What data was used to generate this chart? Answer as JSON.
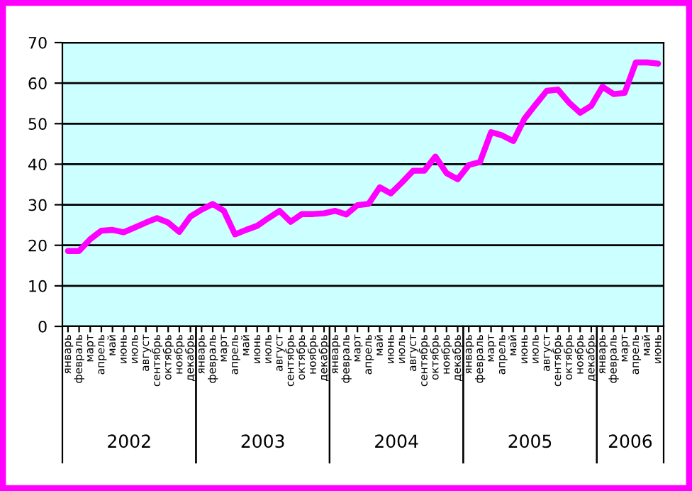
{
  "chart_data": {
    "type": "line",
    "categories": [
      "январь",
      "февраль",
      "март",
      "апрель",
      "май",
      "июнь",
      "июль",
      "август",
      "сентябрь",
      "октябрь",
      "ноябрь",
      "декабрь",
      "январь",
      "февраль",
      "март",
      "апрель",
      "май",
      "июнь",
      "июль",
      "август",
      "сентябрь",
      "октябрь",
      "ноябрь",
      "декабрь",
      "январь",
      "февраль",
      "март",
      "апрель",
      "май",
      "июнь",
      "июль",
      "август",
      "сентябрь",
      "октябрь",
      "ноябрь",
      "декабрь",
      "январь",
      "февраль",
      "март",
      "апрель",
      "май",
      "июнь",
      "июль",
      "август",
      "сентябрь",
      "октябрь",
      "ноябрь",
      "декабрь",
      "январь",
      "февраль",
      "март",
      "апрель",
      "май",
      "июнь"
    ],
    "series": [
      {
        "color": "#ff00ff",
        "values": [
          18.6,
          18.6,
          21.5,
          23.6,
          23.8,
          23.2,
          24.4,
          25.6,
          26.7,
          25.6,
          23.3,
          27.1,
          28.8,
          30.2,
          28.5,
          22.7,
          23.8,
          24.8,
          26.7,
          28.5,
          25.8,
          27.7,
          27.7,
          27.9,
          28.5,
          27.6,
          29.9,
          30.2,
          34.3,
          32.8,
          35.5,
          38.4,
          38.4,
          41.9,
          37.8,
          36.3,
          39.8,
          40.5,
          47.9,
          47.1,
          45.7,
          51.2,
          54.7,
          58.1,
          58.4,
          55.2,
          52.7,
          54.4,
          59.1,
          57.3,
          57.6,
          65.1,
          65.1,
          64.8
        ]
      }
    ],
    "annotations": [
      "2002",
      "2003",
      "2004",
      "2005",
      "2006"
    ],
    "ylim": [
      0,
      70
    ],
    "yticks": [
      0,
      10,
      20,
      30,
      40,
      50,
      60,
      70
    ],
    "grid": "y",
    "marker": "none",
    "line_style": "solid",
    "legend": false
  }
}
